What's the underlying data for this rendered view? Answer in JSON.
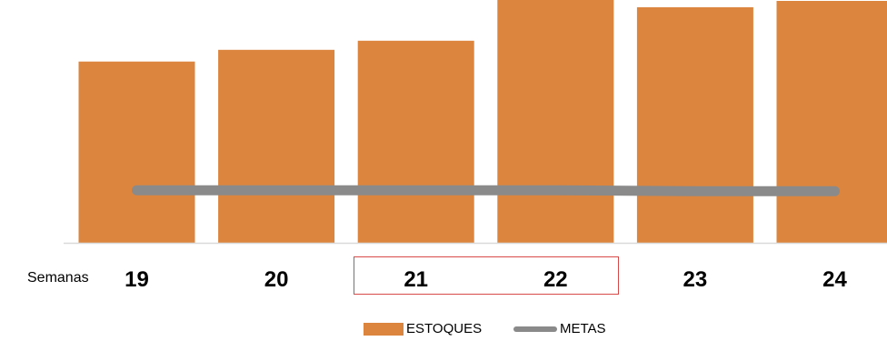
{
  "chart_data": {
    "type": "bar",
    "categories": [
      "19",
      "20",
      "21",
      "22",
      "23",
      "24"
    ],
    "series": [
      {
        "name": "ESTOQUES",
        "type": "bar",
        "values": [
          200,
          213,
          223,
          268,
          260,
          267
        ]
      },
      {
        "name": "METAS",
        "type": "line",
        "values": [
          58,
          58,
          58,
          58,
          57,
          57
        ]
      }
    ],
    "row_label": "Semanas",
    "ylim": [
      0,
      268
    ],
    "grid": false,
    "legend_position": "bottom",
    "highlighted_categories": [
      "21",
      "22"
    ],
    "colors": {
      "bar": "#DC853E",
      "line": "#8A8A8A",
      "axis": "#D9D9D9",
      "highlight": "#D84A4A"
    }
  },
  "legend": {
    "bar_label": "ESTOQUES",
    "line_label": "METAS"
  }
}
